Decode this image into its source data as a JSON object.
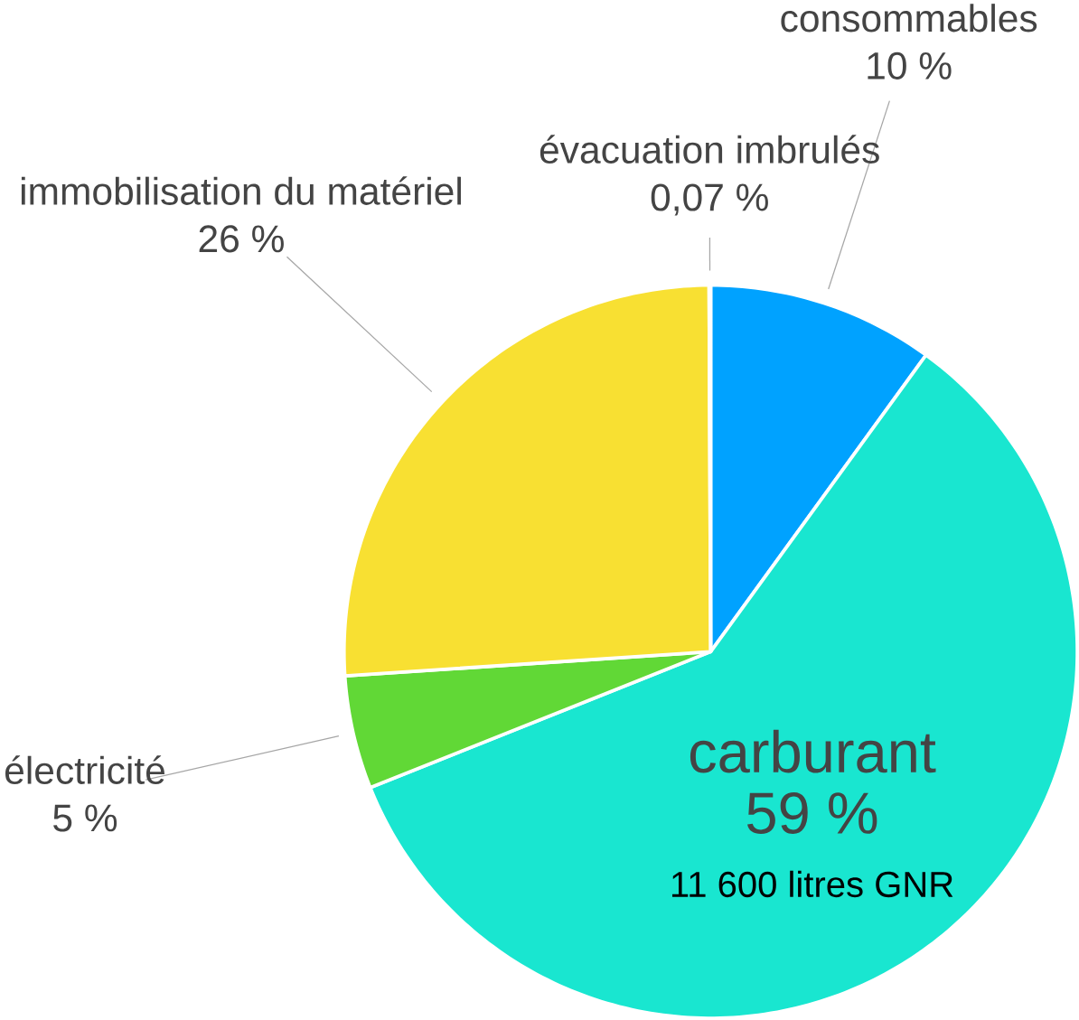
{
  "chart_data": {
    "type": "pie",
    "categories": [
      "consommables",
      "carburant",
      "électricité",
      "immobilisation du matériel",
      "évacuation imbrulés"
    ],
    "values": [
      10,
      59,
      5,
      26,
      0.07
    ],
    "value_labels": [
      "10 %",
      "59 %",
      "5 %",
      "26 %",
      "0,07 %"
    ],
    "colors": [
      "#00a2ff",
      "#19e6d0",
      "#61d836",
      "#f8e032",
      "#d5d5d5"
    ],
    "annotations": [
      "11 600 litres GNR"
    ]
  }
}
